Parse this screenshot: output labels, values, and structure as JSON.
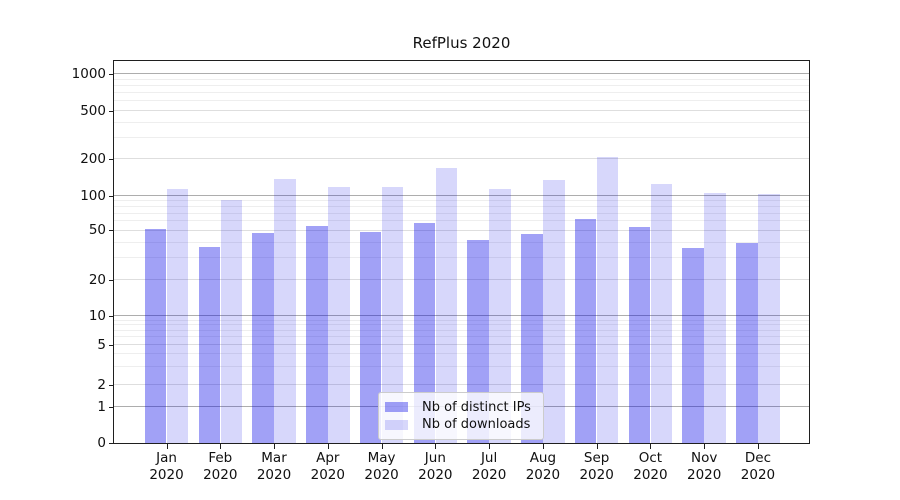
{
  "title": "RefPlus 2020",
  "colors": {
    "bar_distinct_ips": "rgba(0,0,230,0.37)",
    "bar_downloads": "rgba(0,0,230,0.155)",
    "grid_decade": "#adadad",
    "grid_mid": "#dedede",
    "grid_minor": "#eeeeee",
    "axis_spine": "#1f1f1f",
    "text": "#111111",
    "legend_background": "rgba(255,255,255,0.8)",
    "legend_border": "#cccccc"
  },
  "chart_data": {
    "type": "bar",
    "title": "RefPlus 2020",
    "categories": [
      "Jan",
      "Feb",
      "Mar",
      "Apr",
      "May",
      "Jun",
      "Jul",
      "Aug",
      "Sep",
      "Oct",
      "Nov",
      "Dec"
    ],
    "category_year": "2020",
    "series": [
      {
        "name": "Nb of distinct IPs",
        "color": "rgba(0,0,230,0.37)",
        "values": [
          52,
          37,
          48,
          55,
          49,
          58,
          42,
          47,
          63,
          54,
          36,
          40
        ]
      },
      {
        "name": "Nb of downloads",
        "color": "rgba(0,0,230,0.155)",
        "values": [
          113,
          92,
          138,
          118,
          117,
          168,
          114,
          136,
          210,
          125,
          104,
          102
        ]
      }
    ],
    "xlabel": "",
    "ylabel": "",
    "yticks": [
      0,
      1,
      2,
      5,
      10,
      20,
      50,
      100,
      200,
      500,
      1000
    ],
    "yscale": "symlog",
    "ylim": [
      0,
      1280
    ],
    "grid": true,
    "legend_position": "lower center"
  }
}
